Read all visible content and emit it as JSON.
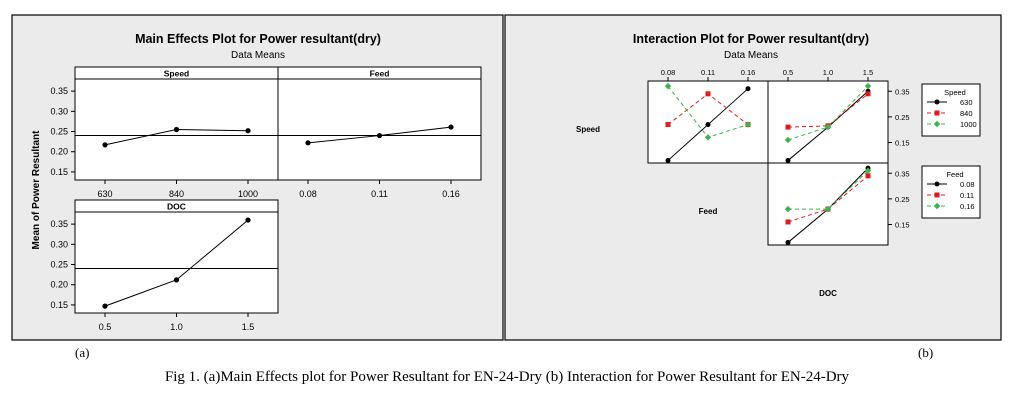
{
  "panel_a": {
    "title": "Main Effects Plot for Power resultant(dry)",
    "subtitle": "Data Means",
    "ylabel": "Mean of Power Resultant",
    "tag": "(a)"
  },
  "panel_b": {
    "title": "Interaction Plot for Power resultant(dry)",
    "subtitle": "Data Means",
    "tag": "(b)"
  },
  "caption": "Fig 1. (a)Main Effects plot for Power Resultant for EN-24-Dry (b) Interaction for Power Resultant for EN-24-Dry",
  "colors": {
    "black": "#000000",
    "red": "#e41a1a",
    "green": "#3cb44b"
  },
  "chart_data": [
    {
      "type": "line",
      "title": "Main Effects Plot for Power resultant(dry)",
      "subtitle": "Data Means",
      "ylabel": "Mean of Power Resultant",
      "ylim": [
        0.13,
        0.38
      ],
      "yticks": [
        "0.15",
        "0.20",
        "0.25",
        "0.30",
        "0.35"
      ],
      "reference_line": 0.24,
      "panels": [
        {
          "name": "Speed",
          "categories": [
            "630",
            "840",
            "1000"
          ],
          "values": [
            0.217,
            0.255,
            0.252
          ]
        },
        {
          "name": "Feed",
          "categories": [
            "0.08",
            "0.11",
            "0.16"
          ],
          "values": [
            0.222,
            0.24,
            0.261
          ]
        },
        {
          "name": "DOC",
          "categories": [
            "0.5",
            "1.0",
            "1.5"
          ],
          "values": [
            0.147,
            0.212,
            0.36
          ]
        }
      ]
    },
    {
      "type": "line",
      "title": "Interaction Plot for Power resultant(dry)",
      "subtitle": "Data Means",
      "ylim": [
        0.07,
        0.39
      ],
      "yticks": [
        "0.15",
        "0.25",
        "0.35"
      ],
      "factors": [
        "Speed",
        "Feed",
        "DOC"
      ],
      "top_ticks": [
        [
          "0.08",
          "0.11",
          "0.16"
        ],
        [
          "0.5",
          "1.0",
          "1.5"
        ]
      ],
      "legends": [
        {
          "title": "Speed",
          "entries": [
            "630",
            "840",
            "1000"
          ]
        },
        {
          "title": "Feed",
          "entries": [
            "0.08",
            "0.11",
            "0.16"
          ]
        }
      ],
      "cells": [
        {
          "row": "Speed",
          "col": "Feed",
          "x": [
            "0.08",
            "0.11",
            "0.16"
          ],
          "series": [
            {
              "name": "630",
              "values": [
                0.08,
                0.22,
                0.36
              ]
            },
            {
              "name": "840",
              "values": [
                0.22,
                0.34,
                0.22
              ]
            },
            {
              "name": "1000",
              "values": [
                0.37,
                0.17,
                0.22
              ]
            }
          ]
        },
        {
          "row": "Speed",
          "col": "DOC",
          "x": [
            "0.5",
            "1.0",
            "1.5"
          ],
          "series": [
            {
              "name": "630",
              "values": [
                0.08,
                0.21,
                0.35
              ]
            },
            {
              "name": "840",
              "values": [
                0.21,
                0.215,
                0.34
              ]
            },
            {
              "name": "1000",
              "values": [
                0.16,
                0.21,
                0.37
              ]
            }
          ]
        },
        {
          "row": "Feed",
          "col": "DOC",
          "x": [
            "0.5",
            "1.0",
            "1.5"
          ],
          "series": [
            {
              "name": "0.08",
              "values": [
                0.08,
                0.21,
                0.37
              ]
            },
            {
              "name": "0.11",
              "values": [
                0.16,
                0.21,
                0.34
              ]
            },
            {
              "name": "0.16",
              "values": [
                0.21,
                0.21,
                0.36
              ]
            }
          ]
        }
      ]
    }
  ]
}
